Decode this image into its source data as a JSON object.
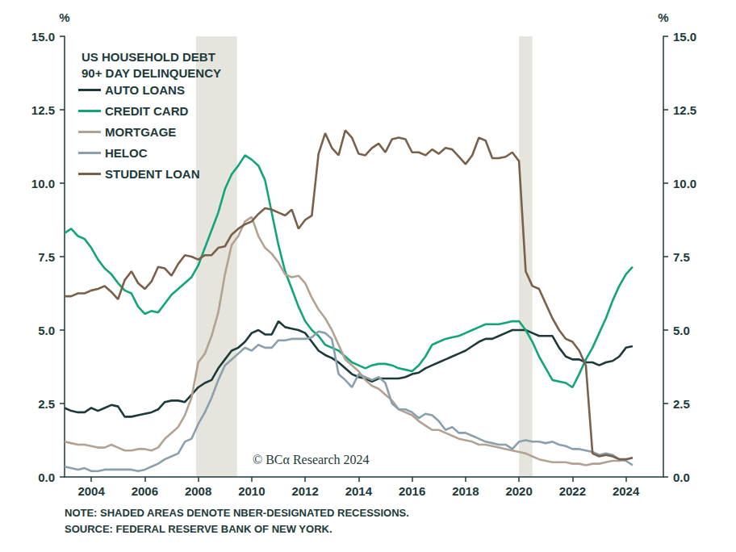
{
  "chart_data": {
    "type": "line",
    "title": "US HOUSEHOLD DEBT\n90+ DAY DELINQUENCY",
    "ylabel": "%",
    "y2label": "%",
    "watermark": "© BCα Research 2024",
    "notes": [
      "NOTE: SHADED AREAS DENOTE NBER-DESIGNATED RECESSIONS.",
      "SOURCE: FEDERAL RESERVE BANK OF NEW YORK."
    ],
    "recessions": [
      [
        2007.92,
        2009.45
      ],
      [
        2020.0,
        2020.5
      ]
    ],
    "legend": "upper left",
    "grid": false,
    "xlim": [
      2003,
      2025.4
    ],
    "xticks": [
      2004,
      2006,
      2008,
      2010,
      2012,
      2014,
      2016,
      2018,
      2020,
      2022,
      2024
    ],
    "ylim": [
      0,
      15
    ],
    "yticks": [
      {
        "value": 0,
        "label": "0.0"
      },
      2.5,
      {
        "value": 5,
        "label": "5.0"
      },
      7.5,
      {
        "value": 10,
        "label": "10.0"
      },
      12.5,
      {
        "value": 15,
        "label": "15.0"
      }
    ],
    "y2lim": [
      0,
      15
    ],
    "y2ticks": [
      {
        "value": 0,
        "label": "0.0"
      },
      2.5,
      {
        "value": 5,
        "label": "5.0"
      },
      7.5,
      {
        "value": 10,
        "label": "10.0"
      },
      12.5,
      {
        "value": 15,
        "label": "15.0"
      }
    ],
    "x": [
      2003,
      2003.25,
      2003.5,
      2003.75,
      2004,
      2004.25,
      2004.5,
      2004.75,
      2005,
      2005.25,
      2005.5,
      2005.75,
      2006,
      2006.25,
      2006.5,
      2006.75,
      2007,
      2007.25,
      2007.5,
      2007.75,
      2008,
      2008.25,
      2008.5,
      2008.75,
      2009,
      2009.25,
      2009.5,
      2009.75,
      2010,
      2010.25,
      2010.5,
      2010.75,
      2011,
      2011.25,
      2011.5,
      2011.75,
      2012,
      2012.25,
      2012.5,
      2012.75,
      2013,
      2013.25,
      2013.5,
      2013.75,
      2014,
      2014.25,
      2014.5,
      2014.75,
      2015,
      2015.25,
      2015.5,
      2015.75,
      2016,
      2016.25,
      2016.5,
      2016.75,
      2017,
      2017.25,
      2017.5,
      2017.75,
      2018,
      2018.25,
      2018.5,
      2018.75,
      2019,
      2019.25,
      2019.5,
      2019.75,
      2020,
      2020.25,
      2020.5,
      2020.75,
      2021,
      2021.25,
      2021.5,
      2021.75,
      2022,
      2022.25,
      2022.5,
      2022.75,
      2023,
      2023.25,
      2023.5,
      2023.75,
      2024,
      2024.25
    ],
    "series": [
      {
        "name": "AUTO LOANS",
        "color": "#1c3a3a",
        "line_style": "solid",
        "values": [
          2.35,
          2.25,
          2.2,
          2.2,
          2.35,
          2.25,
          2.35,
          2.45,
          2.4,
          2.05,
          2.05,
          2.1,
          2.15,
          2.2,
          2.3,
          2.55,
          2.6,
          2.6,
          2.55,
          2.8,
          3.05,
          3.2,
          3.3,
          3.7,
          4.0,
          4.3,
          4.4,
          4.6,
          4.9,
          5.0,
          4.85,
          4.85,
          5.3,
          5.1,
          5.05,
          5.0,
          4.9,
          4.6,
          4.3,
          4.15,
          4.05,
          3.9,
          3.7,
          3.5,
          3.4,
          3.35,
          3.25,
          3.35,
          3.35,
          3.35,
          3.35,
          3.4,
          3.5,
          3.55,
          3.7,
          3.8,
          3.9,
          4.0,
          4.1,
          4.2,
          4.3,
          4.45,
          4.6,
          4.7,
          4.7,
          4.8,
          4.9,
          5.0,
          5.0,
          5.0,
          4.9,
          4.8,
          4.8,
          4.8,
          4.4,
          4.1,
          4.0,
          4.0,
          3.9,
          3.9,
          3.8,
          3.9,
          3.95,
          4.1,
          4.4,
          4.45
        ]
      },
      {
        "name": "CREDIT CARD",
        "color": "#13a57a",
        "line_style": "solid",
        "values": [
          8.3,
          8.45,
          8.2,
          8.1,
          7.8,
          7.4,
          7.1,
          6.9,
          6.6,
          6.35,
          6.25,
          5.8,
          5.55,
          5.65,
          5.6,
          5.9,
          6.2,
          6.4,
          6.6,
          6.8,
          7.2,
          7.8,
          8.4,
          9.0,
          9.8,
          10.3,
          10.6,
          10.95,
          10.8,
          10.6,
          10.1,
          9.0,
          7.9,
          7.0,
          6.4,
          5.8,
          5.3,
          5.0,
          4.8,
          4.5,
          4.4,
          4.3,
          4.1,
          3.9,
          3.8,
          3.7,
          3.8,
          3.85,
          3.85,
          3.8,
          3.7,
          3.65,
          3.6,
          3.8,
          4.1,
          4.5,
          4.6,
          4.7,
          4.75,
          4.8,
          4.9,
          5.0,
          5.1,
          5.2,
          5.2,
          5.2,
          5.25,
          5.3,
          5.3,
          5.0,
          4.6,
          4.1,
          3.7,
          3.3,
          3.25,
          3.2,
          3.05,
          3.5,
          4.0,
          4.4,
          4.9,
          5.4,
          6.0,
          6.5,
          6.9,
          7.15
        ]
      },
      {
        "name": "MORTGAGE",
        "color": "#b3a291",
        "line_style": "solid",
        "values": [
          1.2,
          1.15,
          1.1,
          1.1,
          1.05,
          1.0,
          1.0,
          1.1,
          1.0,
          0.9,
          0.9,
          0.95,
          0.95,
          0.9,
          1.0,
          1.3,
          1.5,
          1.7,
          2.1,
          2.7,
          3.9,
          4.2,
          4.8,
          5.6,
          6.9,
          7.9,
          8.2,
          8.7,
          8.85,
          8.2,
          7.8,
          7.6,
          7.3,
          6.9,
          6.8,
          6.85,
          6.6,
          6.1,
          5.7,
          5.4,
          5.0,
          4.5,
          4.0,
          3.8,
          3.6,
          3.3,
          3.1,
          3.0,
          2.8,
          2.6,
          2.3,
          2.2,
          2.1,
          1.9,
          1.75,
          1.6,
          1.6,
          1.5,
          1.4,
          1.3,
          1.25,
          1.2,
          1.1,
          1.1,
          1.05,
          1.0,
          0.95,
          0.9,
          0.85,
          0.8,
          0.7,
          0.6,
          0.55,
          0.5,
          0.5,
          0.5,
          0.45,
          0.45,
          0.4,
          0.45,
          0.45,
          0.5,
          0.55,
          0.55,
          0.6,
          0.65
        ]
      },
      {
        "name": "HELOC",
        "color": "#8aa0ad",
        "line_style": "solid",
        "values": [
          0.35,
          0.3,
          0.25,
          0.3,
          0.2,
          0.2,
          0.25,
          0.25,
          0.25,
          0.25,
          0.25,
          0.2,
          0.25,
          0.35,
          0.45,
          0.6,
          0.7,
          0.8,
          1.2,
          1.3,
          1.8,
          2.2,
          2.7,
          3.3,
          3.8,
          4.0,
          4.2,
          4.4,
          4.3,
          4.5,
          4.4,
          4.4,
          4.65,
          4.65,
          4.7,
          4.7,
          4.7,
          4.75,
          4.95,
          4.9,
          4.7,
          3.5,
          3.3,
          3.05,
          3.5,
          3.4,
          3.3,
          3.4,
          3.2,
          2.5,
          2.3,
          2.3,
          2.2,
          2.0,
          2.15,
          2.1,
          1.9,
          1.6,
          1.7,
          1.5,
          1.5,
          1.4,
          1.3,
          1.2,
          1.15,
          1.1,
          1.1,
          0.95,
          1.2,
          1.25,
          1.2,
          1.2,
          1.15,
          1.2,
          1.1,
          1.05,
          0.95,
          0.95,
          0.9,
          0.85,
          0.75,
          0.8,
          0.75,
          0.6,
          0.55,
          0.4
        ]
      },
      {
        "name": "STUDENT LOAN",
        "color": "#7b6049",
        "line_style": "solid",
        "values": [
          6.15,
          6.15,
          6.25,
          6.25,
          6.35,
          6.4,
          6.5,
          6.3,
          6.05,
          6.7,
          7.0,
          6.6,
          6.4,
          6.65,
          7.15,
          7.1,
          6.85,
          7.25,
          7.55,
          7.5,
          7.4,
          7.55,
          7.55,
          7.8,
          7.85,
          8.25,
          8.45,
          8.6,
          8.7,
          8.95,
          9.15,
          9.1,
          9.0,
          8.9,
          9.1,
          8.45,
          8.75,
          8.9,
          11.0,
          11.7,
          11.2,
          10.95,
          11.8,
          11.55,
          11.0,
          10.95,
          11.2,
          11.35,
          11.05,
          11.5,
          11.55,
          11.5,
          11.05,
          11.05,
          10.95,
          11.15,
          11.0,
          11.2,
          11.15,
          10.9,
          10.65,
          10.95,
          11.55,
          11.45,
          10.85,
          10.85,
          10.9,
          11.05,
          10.75,
          7.0,
          6.5,
          6.4,
          5.9,
          5.4,
          5.0,
          4.7,
          4.6,
          4.3,
          3.8,
          0.8,
          0.7,
          0.75,
          0.7,
          0.6,
          0.6,
          0.65
        ]
      }
    ]
  }
}
